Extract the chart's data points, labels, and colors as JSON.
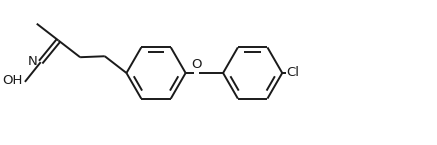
{
  "bg_color": "#ffffff",
  "line_color": "#1a1a1a",
  "line_width": 1.4,
  "font_size": 9.5,
  "figsize": [
    4.37,
    1.45
  ],
  "dpi": 100,
  "xlim": [
    0,
    4.37
  ],
  "ylim": [
    0,
    1.45
  ]
}
